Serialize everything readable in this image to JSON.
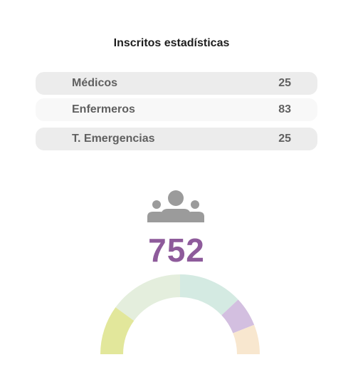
{
  "header": {
    "title": "Inscritos estadísticas"
  },
  "stats": [
    {
      "label": "Médicos",
      "value": "25"
    },
    {
      "label": "Enfermeros",
      "value": "83"
    },
    {
      "label": "T. Emergencias",
      "value": "25"
    }
  ],
  "summary": {
    "icon": "people-group-icon",
    "total": "752"
  },
  "gauge": {
    "segments": [
      {
        "fraction": 0.2,
        "color": "#e2e79b"
      },
      {
        "fraction": 0.3,
        "color": "#e4eedd"
      },
      {
        "fraction": 0.26,
        "color": "#d4eae2"
      },
      {
        "fraction": 0.12,
        "color": "#d3bfe0"
      },
      {
        "fraction": 0.12,
        "color": "#f8e7cf"
      }
    ]
  },
  "colors": {
    "accent": "#8e5b9b",
    "icon": "#9b9b9b"
  }
}
